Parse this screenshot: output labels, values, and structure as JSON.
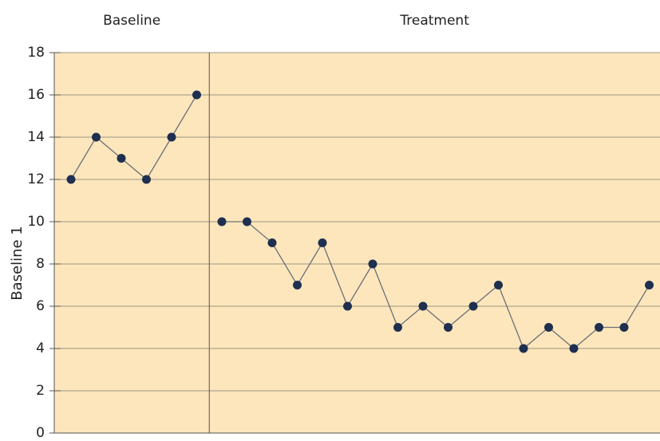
{
  "chart_data": {
    "type": "line",
    "phase_labels": [
      "Baseline",
      "Treatment"
    ],
    "ylabel": "Baseline 1",
    "categories": [
      null,
      null,
      null,
      null,
      null,
      null,
      null,
      null,
      null,
      null,
      null,
      null,
      null,
      null,
      null,
      null,
      null,
      null,
      null,
      null,
      null,
      null,
      null,
      null
    ],
    "series": [
      {
        "color": "#1e2f4f",
        "values": [
          12,
          14,
          13,
          12,
          14,
          16,
          null,
          null,
          null,
          null,
          null,
          null,
          null,
          null,
          null,
          null,
          null,
          null,
          null,
          null,
          null,
          null,
          null,
          null
        ]
      },
      {
        "color": "#1e2f4f",
        "values": [
          null,
          null,
          null,
          null,
          null,
          null,
          10,
          10,
          9,
          7,
          9,
          6,
          8,
          5,
          6,
          5,
          6,
          7,
          4,
          5,
          4,
          5,
          5,
          7
        ]
      }
    ],
    "ylim": [
      0,
      18
    ],
    "yticks": [
      0,
      2,
      4,
      6,
      8,
      10,
      12,
      14,
      16,
      18
    ],
    "grid": true,
    "background": "#fde6bb"
  }
}
